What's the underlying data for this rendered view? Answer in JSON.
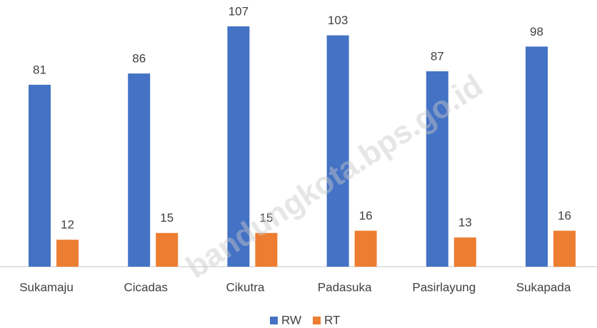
{
  "chart_data": {
    "type": "bar",
    "categories": [
      "Sukamaju",
      "Cicadas",
      "Cikutra",
      "Padasuka",
      "Pasirlayung",
      "Sukapada"
    ],
    "series": [
      {
        "name": "RW",
        "color": "#4472c4",
        "values": [
          81,
          86,
          107,
          103,
          87,
          98
        ]
      },
      {
        "name": "RT",
        "color": "#ed7d31",
        "values": [
          12,
          15,
          15,
          16,
          13,
          16
        ]
      }
    ],
    "ylim": [
      0,
      110
    ],
    "legend": "bottom",
    "watermark": "bandungkota.bps.go.id"
  }
}
